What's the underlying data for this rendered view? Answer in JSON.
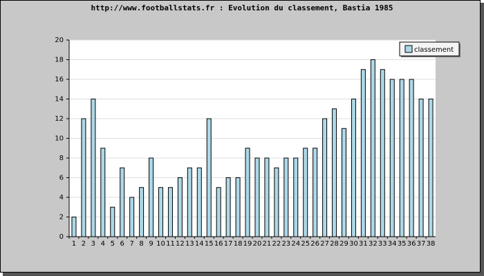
{
  "chart_data": {
    "type": "bar",
    "title": "http://www.footballstats.fr : Evolution du classement, Bastia 1985",
    "categories": [
      "1",
      "2",
      "3",
      "4",
      "5",
      "6",
      "7",
      "8",
      "9",
      "10",
      "11",
      "12",
      "13",
      "14",
      "15",
      "16",
      "17",
      "18",
      "19",
      "20",
      "21",
      "22",
      "23",
      "24",
      "25",
      "26",
      "27",
      "28",
      "29",
      "30",
      "31",
      "32",
      "33",
      "34",
      "35",
      "36",
      "37",
      "38"
    ],
    "series": [
      {
        "name": "classement",
        "color": "#add8e6",
        "values": [
          2,
          12,
          14,
          9,
          3,
          7,
          4,
          5,
          8,
          5,
          5,
          6,
          7,
          7,
          12,
          5,
          6,
          6,
          9,
          8,
          8,
          7,
          8,
          8,
          9,
          9,
          12,
          13,
          11,
          14,
          17,
          18,
          17,
          16,
          16,
          16,
          14,
          14
        ]
      }
    ],
    "ylim": [
      0,
      20
    ],
    "yticks": [
      0,
      2,
      4,
      6,
      8,
      10,
      12,
      14,
      16,
      18,
      20
    ],
    "grid": true,
    "legend": "top-right"
  }
}
